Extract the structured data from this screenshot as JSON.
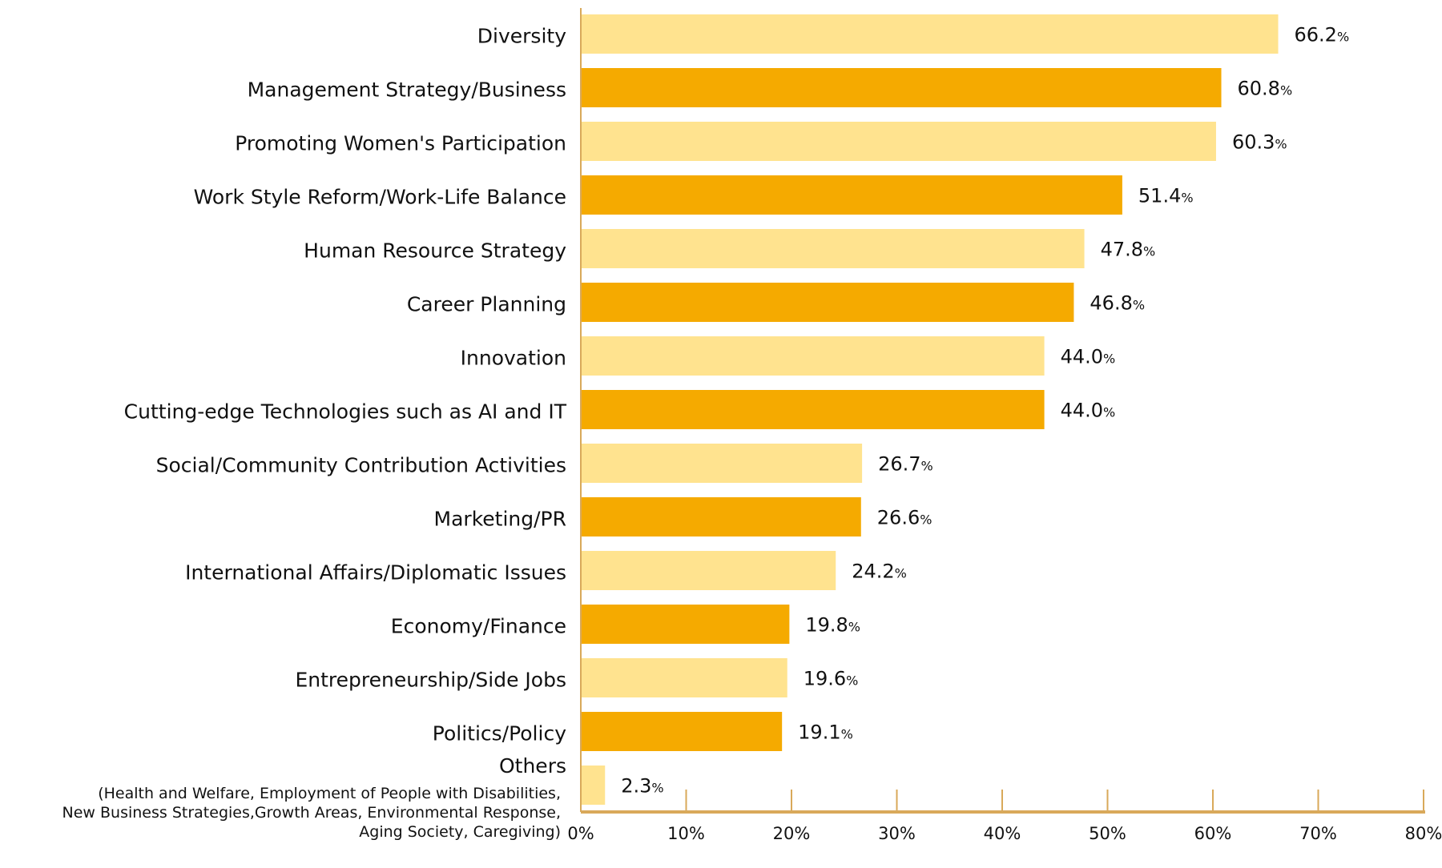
{
  "chart_data": {
    "type": "bar",
    "orientation": "horizontal",
    "categories": [
      "Diversity",
      "Management Strategy/Business",
      "Promoting Women's Participation",
      "Work Style Reform/Work-Life Balance",
      "Human Resource Strategy",
      "Career Planning",
      "Innovation",
      "Cutting-edge Technologies such as AI and IT",
      "Social/Community Contribution Activities",
      "Marketing/PR",
      "International Affairs/Diplomatic Issues",
      "Economy/Finance",
      "Entrepreneurship/Side Jobs",
      "Politics/Policy",
      "Others"
    ],
    "category_notes": {
      "Others": [
        "(Health and Welfare, Employment of People with Disabilities,",
        "New Business Strategies,Growth Areas, Environmental Response,",
        "Aging Society, Caregiving)"
      ]
    },
    "values": [
      66.2,
      60.8,
      60.3,
      51.4,
      47.8,
      46.8,
      44.0,
      44.0,
      26.7,
      26.6,
      24.2,
      19.8,
      19.6,
      19.1,
      2.3
    ],
    "value_labels": [
      "66.2",
      "60.8",
      "60.3",
      "51.4",
      "47.8",
      "46.8",
      "44.0",
      "44.0",
      "26.7",
      "26.6",
      "24.2",
      "19.8",
      "19.6",
      "19.1",
      "2.3"
    ],
    "value_unit": "%",
    "xlim": [
      0,
      80
    ],
    "xticks": [
      "0%",
      "10%",
      "20%",
      "30%",
      "40%",
      "50%",
      "60%",
      "70%",
      "80%"
    ],
    "grid": false,
    "colors": {
      "light": "#FFE38F",
      "dark": "#F5AA00",
      "axis": "#D9A95A"
    }
  }
}
